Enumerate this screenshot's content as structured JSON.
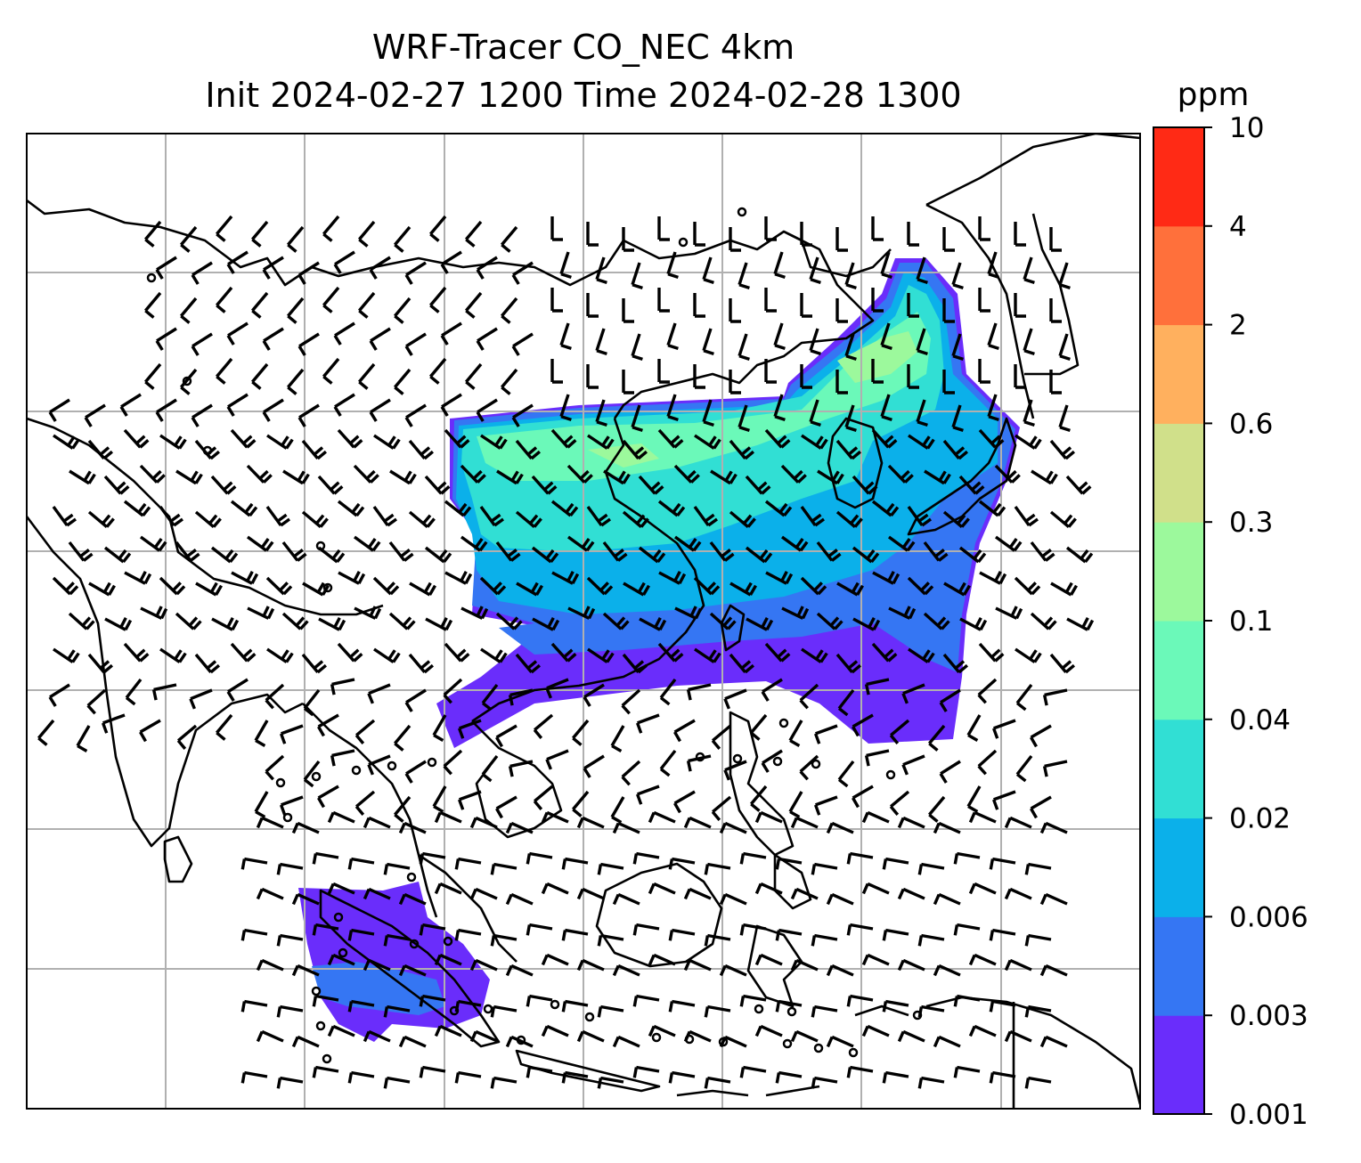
{
  "title_line1": "WRF-Tracer CO_NEC 4km",
  "title_line2": "Init 2024-02-27 1200 Time 2024-02-28 1300",
  "colorbar": {
    "unit": "ppm",
    "levels": [
      "0.001",
      "0.003",
      "0.006",
      "0.02",
      "0.04",
      "0.1",
      "0.3",
      "0.6",
      "2",
      "4",
      "10"
    ],
    "colors": [
      "#6a2dfb",
      "#3576f3",
      "#0bb0ea",
      "#31dfd4",
      "#6bf9b9",
      "#9cf99c",
      "#d0e08a",
      "#ffb05e",
      "#ff703b",
      "#ff2a15"
    ]
  },
  "map": {
    "graticule": "on",
    "features": [
      "coastlines",
      "country borders",
      "wind barbs",
      "CO tracer shading"
    ]
  }
}
